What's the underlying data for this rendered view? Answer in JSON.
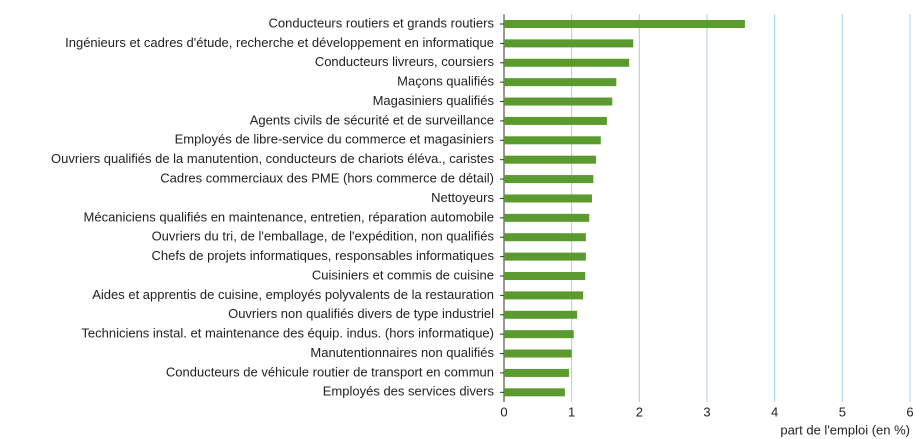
{
  "chart_data": {
    "type": "barh",
    "categories": [
      "Conducteurs routiers et grands routiers",
      "Ingénieurs et cadres d'étude, recherche et développement en informatique",
      "Conducteurs livreurs, coursiers",
      "Maçons qualifiés",
      "Magasiniers qualifiés",
      "Agents civils de sécurité et de surveillance",
      "Employés de libre-service du commerce et magasiniers",
      "Ouvriers qualifiés de la manutention, conducteurs de chariots éléva., caristes",
      "Cadres commerciaux des PME (hors commerce de détail)",
      "Nettoyeurs",
      "Mécaniciens qualifiés en maintenance, entretien, réparation automobile",
      "Ouvriers du tri, de l'emballage, de l'expédition, non qualifiés",
      "Chefs de projets informatiques, responsables informatiques",
      "Cuisiniers et commis de cuisine",
      "Aides et apprentis de cuisine, employés polyvalents de la restauration",
      "Ouvriers non qualifiés divers de type industriel",
      "Techniciens instal. et maintenance des équip. indus. (hors informatique)",
      "Manutentionnaires non qualifiés",
      "Conducteurs de véhicule routier de transport en commun",
      "Employés des services divers"
    ],
    "values": [
      3.56,
      1.91,
      1.85,
      1.66,
      1.6,
      1.52,
      1.43,
      1.36,
      1.32,
      1.3,
      1.26,
      1.21,
      1.21,
      1.2,
      1.17,
      1.08,
      1.03,
      1.0,
      0.96,
      0.9
    ],
    "color": "#5b9a2f",
    "x_label": "part de l'emploi (en %)",
    "xlim": [
      0,
      6
    ],
    "xticks": [
      0,
      1,
      2,
      3,
      4,
      5,
      6
    ],
    "grid": true,
    "grid_color": "#9fd0e8"
  }
}
